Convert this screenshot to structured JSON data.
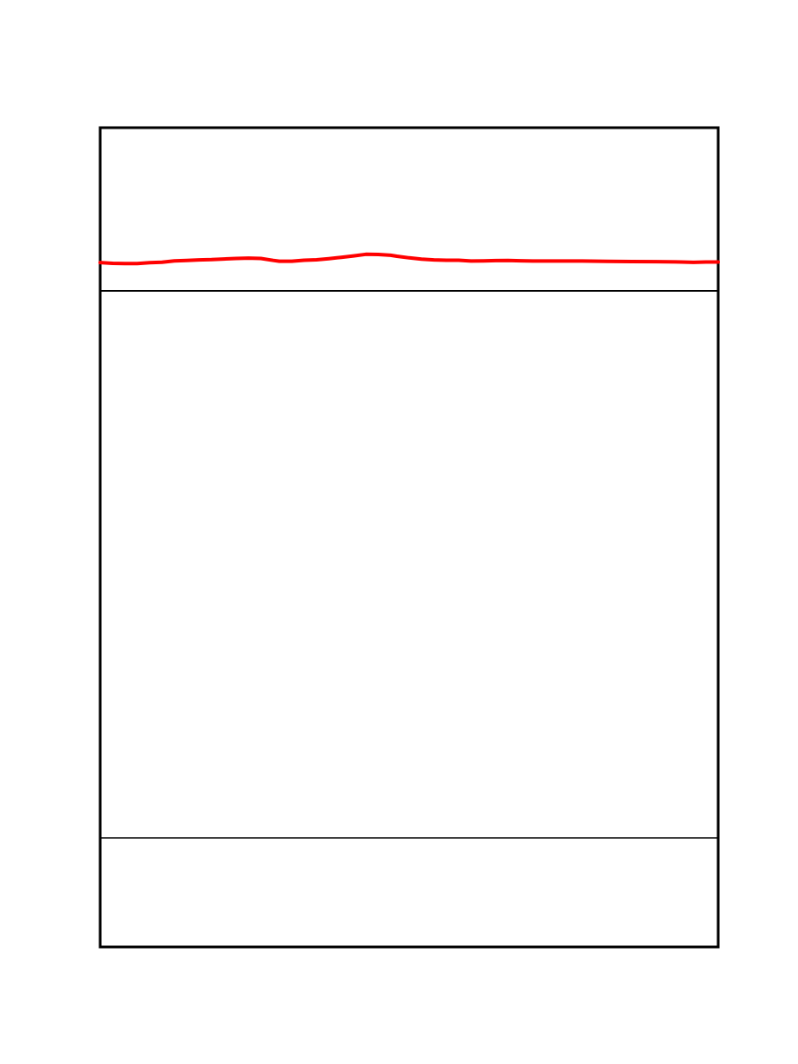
{
  "chart_data": {
    "type": "line",
    "title": "",
    "xlabel": "",
    "ylabel": "",
    "grid": false,
    "legend": "none",
    "xlim": [
      0,
      100
    ],
    "ylim": [
      0,
      100
    ],
    "series": [
      {
        "color": "#ff0000",
        "x": [
          0,
          2,
          4,
          6,
          8,
          10,
          12,
          14,
          16,
          18,
          20,
          22,
          24,
          26,
          28,
          29,
          31,
          33,
          35,
          37,
          39,
          41,
          43,
          45,
          47,
          48,
          50,
          52,
          54,
          56,
          58,
          60,
          62,
          64,
          66,
          68,
          70,
          71,
          73,
          76,
          78,
          82,
          86,
          90,
          94,
          96,
          98,
          100
        ],
        "y": [
          17.0,
          16.5,
          16.3,
          16.3,
          16.9,
          17.2,
          18.0,
          18.3,
          18.6,
          18.8,
          19.2,
          19.5,
          19.7,
          19.5,
          18.3,
          17.8,
          17.8,
          18.4,
          18.7,
          19.4,
          20.2,
          21.1,
          22.1,
          22.0,
          21.5,
          20.9,
          19.9,
          19.1,
          18.6,
          18.4,
          18.4,
          17.9,
          18.0,
          18.2,
          18.3,
          18.1,
          17.9,
          17.9,
          17.9,
          17.9,
          17.9,
          17.7,
          17.6,
          17.5,
          17.3,
          17.1,
          17.3,
          17.3
        ]
      }
    ]
  }
}
